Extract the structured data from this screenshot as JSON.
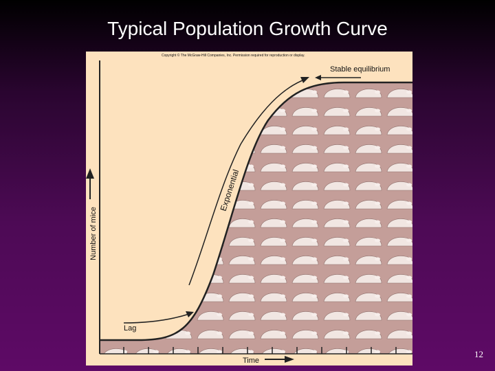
{
  "header": {
    "title": "Typical Population Growth Curve"
  },
  "figure": {
    "copyright": "Copyright © The McGraw-Hill Companies, Inc. Permission required for reproduction or display.",
    "labels": {
      "stable": "Stable equilibrium",
      "exponential": "Exponential",
      "lag": "Lag",
      "y_axis": "Number of mice",
      "x_axis": "Time"
    }
  },
  "footer": {
    "page_number": "12"
  }
}
